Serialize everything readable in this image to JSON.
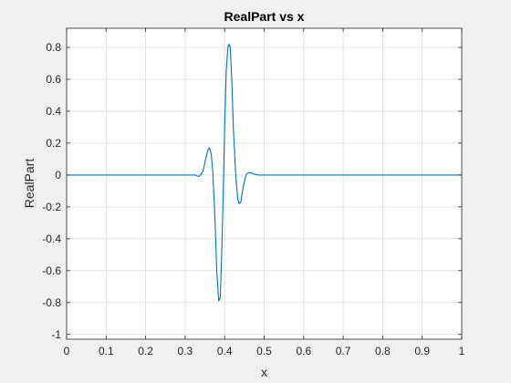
{
  "chart_data": {
    "type": "line",
    "title": "RealPart vs x",
    "xlabel": "x",
    "ylabel": "RealPart",
    "xlim": [
      0,
      1
    ],
    "ylim": [
      -1.03,
      0.92
    ],
    "grid": true,
    "x_ticks": [
      0,
      0.1,
      0.2,
      0.3,
      0.4,
      0.5,
      0.6,
      0.7,
      0.8,
      0.9,
      1
    ],
    "x_tick_labels": [
      "0",
      "0.1",
      "0.2",
      "0.3",
      "0.4",
      "0.5",
      "0.6",
      "0.7",
      "0.8",
      "0.9",
      "1"
    ],
    "y_ticks": [
      -1,
      -0.8,
      -0.6,
      -0.4,
      -0.2,
      0,
      0.2,
      0.4,
      0.6,
      0.8
    ],
    "y_tick_labels": [
      "-1",
      "-0.8",
      "-0.6",
      "-0.4",
      "-0.2",
      "0",
      "0.2",
      "0.4",
      "0.6",
      "0.8"
    ],
    "line_color": "#0072bd",
    "series": [
      {
        "x": [
          0,
          0.1,
          0.2,
          0.3,
          0.325,
          0.335,
          0.345,
          0.352,
          0.358,
          0.362,
          0.366,
          0.37,
          0.375,
          0.38,
          0.385,
          0.389,
          0.392,
          0.396,
          0.4,
          0.404,
          0.408,
          0.411,
          0.414,
          0.418,
          0.422,
          0.428,
          0.433,
          0.437,
          0.441,
          0.445,
          0.45,
          0.455,
          0.46,
          0.468,
          0.475,
          0.485,
          0.5,
          0.6,
          0.7,
          0.8,
          0.9,
          1
        ],
        "y": [
          0,
          0,
          0,
          0,
          0,
          -0.01,
          0.02,
          0.1,
          0.16,
          0.17,
          0.13,
          0.02,
          -0.25,
          -0.6,
          -0.79,
          -0.77,
          -0.55,
          -0.15,
          0.3,
          0.65,
          0.8,
          0.82,
          0.8,
          0.6,
          0.3,
          0,
          -0.15,
          -0.18,
          -0.17,
          -0.1,
          -0.04,
          0.005,
          0.015,
          0.012,
          0.005,
          0,
          0,
          0,
          0,
          0,
          0,
          0
        ]
      }
    ]
  }
}
